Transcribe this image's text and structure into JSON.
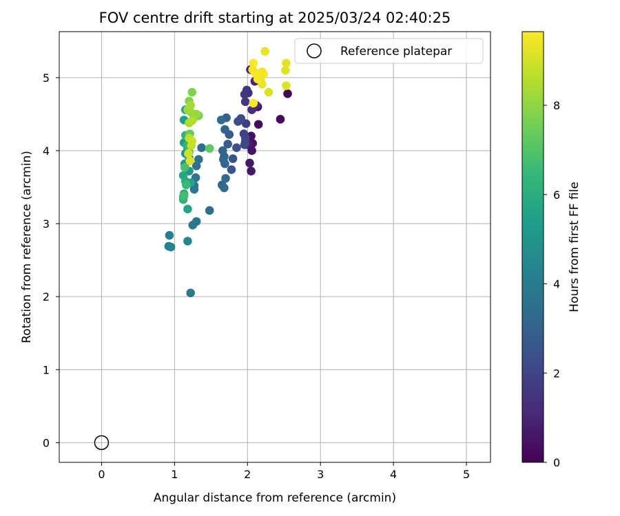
{
  "chart_data": {
    "type": "scatter",
    "title": "FOV centre drift starting at 2025/03/24 02:40:25",
    "xlabel": "Angular distance from reference (arcmin)",
    "ylabel": "Rotation from reference (arcmin)",
    "xlim": [
      -0.58,
      5.33
    ],
    "ylim": [
      -0.27,
      5.63
    ],
    "xticks": [
      0,
      1,
      2,
      3,
      4,
      5
    ],
    "yticks": [
      0,
      1,
      2,
      3,
      4,
      5
    ],
    "grid": true,
    "colormap": "viridis",
    "colorbar": {
      "label": "Hours from first FF file",
      "range": [
        0,
        9.65
      ],
      "ticks": [
        0,
        2,
        4,
        6,
        8
      ]
    },
    "legend": {
      "entries": [
        "Reference platepar"
      ],
      "placement": "top-right"
    },
    "reference_point": {
      "x": 0,
      "y": 0,
      "name": "Reference platepar"
    },
    "points": [
      [
        2.55,
        4.78,
        0.1
      ],
      [
        2.45,
        4.43,
        0.2
      ],
      [
        2.15,
        4.36,
        0.3
      ],
      [
        2.14,
        4.6,
        0.35
      ],
      [
        2.05,
        4.2,
        0.4
      ],
      [
        2.07,
        4.1,
        0.5
      ],
      [
        2.06,
        4.0,
        0.55
      ],
      [
        2.05,
        3.72,
        0.6
      ],
      [
        2.03,
        3.83,
        0.7
      ],
      [
        2.0,
        4.08,
        0.8
      ],
      [
        2.04,
        5.11,
        0.9
      ],
      [
        2.1,
        4.95,
        1.0
      ],
      [
        2.12,
        4.62,
        1.1
      ],
      [
        2.06,
        4.56,
        1.2
      ],
      [
        2.01,
        4.79,
        1.3
      ],
      [
        1.99,
        4.83,
        1.4
      ],
      [
        1.96,
        4.77,
        1.5
      ],
      [
        1.97,
        4.67,
        1.6
      ],
      [
        1.97,
        4.12,
        1.7
      ],
      [
        1.98,
        4.37,
        1.8
      ],
      [
        1.95,
        4.23,
        1.9
      ],
      [
        1.97,
        4.18,
        2.0
      ],
      [
        1.96,
        4.08,
        2.1
      ],
      [
        1.91,
        4.44,
        2.2
      ],
      [
        1.87,
        4.4,
        2.3
      ],
      [
        1.85,
        4.04,
        2.4
      ],
      [
        1.8,
        3.89,
        2.5
      ],
      [
        1.78,
        3.74,
        2.6
      ],
      [
        1.75,
        4.22,
        2.7
      ],
      [
        1.73,
        4.09,
        2.8
      ],
      [
        1.71,
        4.45,
        2.9
      ],
      [
        1.69,
        4.29,
        3.0
      ],
      [
        1.68,
        3.92,
        3.05
      ],
      [
        1.66,
        4.0,
        3.1
      ],
      [
        1.69,
        3.82,
        3.15
      ],
      [
        1.67,
        3.88,
        3.2
      ],
      [
        1.65,
        3.53,
        3.25
      ],
      [
        1.68,
        3.49,
        3.3
      ],
      [
        1.7,
        3.62,
        3.35
      ],
      [
        1.64,
        4.42,
        3.4
      ],
      [
        1.48,
        3.18,
        3.45
      ],
      [
        1.37,
        4.04,
        3.5
      ],
      [
        1.33,
        3.88,
        3.55
      ],
      [
        1.3,
        3.79,
        3.6
      ],
      [
        1.29,
        3.63,
        3.65
      ],
      [
        1.27,
        3.52,
        3.7
      ],
      [
        1.27,
        3.47,
        3.75
      ],
      [
        1.3,
        3.03,
        3.8
      ],
      [
        1.25,
        2.98,
        3.85
      ],
      [
        1.22,
        2.05,
        3.95
      ],
      [
        0.93,
        2.84,
        4.1
      ],
      [
        0.92,
        2.69,
        4.2
      ],
      [
        0.95,
        2.68,
        4.3
      ],
      [
        1.18,
        2.76,
        4.45
      ],
      [
        1.2,
        3.9,
        4.6
      ],
      [
        1.18,
        4.02,
        4.8
      ],
      [
        1.2,
        3.72,
        4.9
      ],
      [
        1.15,
        3.96,
        5.0
      ],
      [
        1.14,
        3.82,
        5.1
      ],
      [
        1.13,
        4.11,
        5.25
      ],
      [
        1.13,
        4.42,
        5.4
      ],
      [
        1.15,
        4.56,
        5.5
      ],
      [
        1.22,
        3.56,
        5.55
      ],
      [
        1.18,
        3.2,
        5.65
      ],
      [
        1.12,
        3.66,
        5.8
      ],
      [
        1.15,
        3.58,
        5.9
      ],
      [
        1.13,
        3.41,
        6.0
      ],
      [
        1.12,
        3.33,
        6.1
      ],
      [
        1.17,
        4.07,
        6.2
      ],
      [
        1.15,
        4.21,
        6.35
      ],
      [
        1.12,
        3.37,
        6.45
      ],
      [
        1.16,
        3.53,
        6.55
      ],
      [
        1.13,
        3.38,
        6.7
      ],
      [
        1.14,
        3.77,
        6.8
      ],
      [
        1.2,
        3.98,
        7.0
      ],
      [
        1.48,
        4.03,
        7.2
      ],
      [
        1.21,
        4.23,
        7.4
      ],
      [
        1.33,
        4.48,
        7.6
      ],
      [
        1.24,
        4.8,
        7.75
      ],
      [
        1.2,
        4.68,
        7.85
      ],
      [
        1.26,
        4.44,
        7.95
      ],
      [
        1.22,
        4.53,
        8.05
      ],
      [
        1.3,
        4.5,
        8.15
      ],
      [
        1.18,
        4.56,
        8.25
      ],
      [
        1.22,
        4.62,
        8.35
      ],
      [
        1.2,
        4.38,
        8.45
      ],
      [
        1.24,
        4.41,
        8.55
      ],
      [
        1.2,
        4.17,
        8.65
      ],
      [
        1.23,
        4.07,
        8.75
      ],
      [
        1.24,
        4.13,
        8.85
      ],
      [
        1.19,
        3.96,
        8.95
      ],
      [
        1.21,
        3.86,
        9.05
      ],
      [
        2.29,
        4.8,
        9.1
      ],
      [
        2.53,
        4.89,
        9.15
      ],
      [
        2.52,
        5.1,
        9.2
      ],
      [
        2.53,
        5.2,
        9.25
      ],
      [
        2.24,
        5.36,
        9.3
      ],
      [
        2.2,
        4.91,
        9.35
      ],
      [
        2.18,
        4.97,
        9.4
      ],
      [
        2.2,
        5.08,
        9.45
      ],
      [
        2.22,
        5.05,
        9.5
      ],
      [
        2.14,
        4.98,
        9.52
      ],
      [
        2.11,
        5.06,
        9.55
      ],
      [
        2.07,
        5.11,
        9.58
      ],
      [
        2.08,
        5.2,
        9.6
      ],
      [
        2.08,
        4.65,
        9.65
      ]
    ]
  }
}
